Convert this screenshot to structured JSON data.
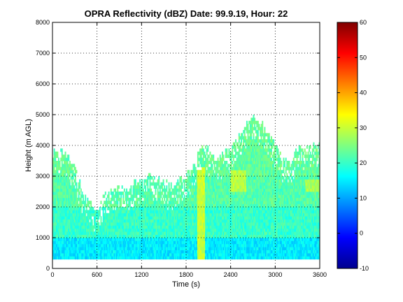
{
  "chart_data": {
    "type": "heatmap",
    "title": "OPRA Reflectivity (dBZ)  Date: 99.9.19, Hour: 22",
    "xlabel": "Time (s)",
    "ylabel": "Height (m AGL)",
    "xlim": [
      0,
      3600
    ],
    "ylim": [
      0,
      8000
    ],
    "xticks": [
      0,
      600,
      1200,
      1800,
      2400,
      3000,
      3600
    ],
    "yticks": [
      0,
      1000,
      2000,
      3000,
      4000,
      5000,
      6000,
      7000,
      8000
    ],
    "grid": true,
    "colormap": "jet",
    "colorbar": {
      "range": [
        -10,
        60
      ],
      "ticks": [
        -10,
        0,
        10,
        20,
        30,
        40,
        50,
        60
      ]
    },
    "echo_base_m": 300,
    "echo_top_profile": {
      "t_s": [
        0,
        100,
        200,
        300,
        400,
        500,
        600,
        700,
        800,
        900,
        1000,
        1100,
        1200,
        1300,
        1400,
        1500,
        1600,
        1700,
        1800,
        1900,
        2000,
        2100,
        2200,
        2300,
        2400,
        2500,
        2600,
        2700,
        2800,
        2900,
        3000,
        3100,
        3200,
        3300,
        3400,
        3500,
        3600
      ],
      "top_m": [
        3700,
        3800,
        3600,
        3200,
        2500,
        2100,
        1900,
        2300,
        2500,
        2600,
        2500,
        2700,
        2800,
        3000,
        2900,
        2800,
        2600,
        2800,
        3000,
        3300,
        3900,
        3800,
        3500,
        3700,
        3800,
        4200,
        4600,
        5000,
        4700,
        4400,
        3900,
        3500,
        3400,
        3900,
        3800,
        3900,
        4000
      ]
    },
    "reflectivity_layers_dbz": [
      {
        "height_range_m": [
          300,
          1000
        ],
        "value": 15
      },
      {
        "height_range_m": [
          1000,
          2000
        ],
        "value": 20
      },
      {
        "height_range_m": [
          2000,
          3000
        ],
        "value": 22
      },
      {
        "height_range_m": [
          3000,
          5000
        ],
        "value": 23
      }
    ],
    "features": [
      {
        "t_range_s": [
          1950,
          2050
        ],
        "height_range_m": [
          300,
          3300
        ],
        "value": 30
      },
      {
        "t_range_s": [
          2400,
          2600
        ],
        "height_range_m": [
          2500,
          3200
        ],
        "value": 29
      },
      {
        "t_range_s": [
          3400,
          3600
        ],
        "height_range_m": [
          2500,
          2900
        ],
        "value": 28
      }
    ]
  }
}
